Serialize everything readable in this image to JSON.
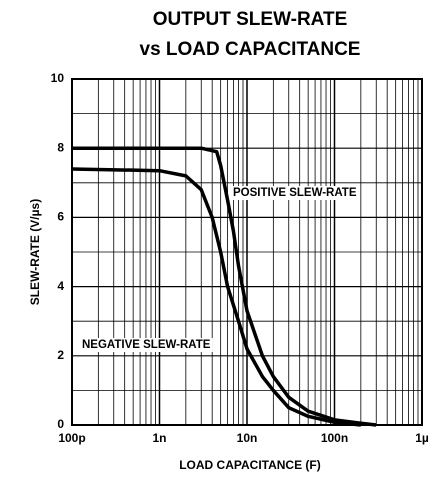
{
  "chart_data": {
    "type": "line",
    "title": [
      "OUTPUT SLEW-RATE",
      "vs LOAD CAPACITANCE"
    ],
    "x_label": "LOAD CAPACITANCE (F)",
    "y_label": "SLEW-RATE (V/µs)",
    "xscale": "log",
    "xlim": [
      1e-10,
      1e-06
    ],
    "xticks": [
      {
        "value": 1e-10,
        "label": "100p"
      },
      {
        "value": 1e-09,
        "label": "1n"
      },
      {
        "value": 1e-08,
        "label": "10n"
      },
      {
        "value": 1e-07,
        "label": "100n"
      },
      {
        "value": 1e-06,
        "label": "1µ"
      }
    ],
    "ylim": [
      0,
      10
    ],
    "yticks": [
      0,
      2,
      4,
      6,
      8,
      10
    ],
    "grid": true,
    "series": [
      {
        "name": "POSITIVE SLEW-RATE",
        "color": "#000000",
        "x": [
          1e-10,
          1e-09,
          3e-09,
          4.5e-09,
          5e-09,
          6e-09,
          7e-09,
          8e-09,
          1e-08,
          1.5e-08,
          2e-08,
          3e-08,
          5e-08,
          1e-07,
          2e-07,
          3e-07
        ],
        "values": [
          8,
          8,
          8,
          7.9,
          7.5,
          6.5,
          5.6,
          4.6,
          3.3,
          2,
          1.4,
          0.8,
          0.4,
          0.15,
          0.05,
          0
        ]
      },
      {
        "name": "NEGATIVE SLEW-RATE",
        "color": "#000000",
        "x": [
          1e-10,
          1e-09,
          2e-09,
          3e-09,
          4e-09,
          5e-09,
          6e-09,
          8e-09,
          1e-08,
          1.5e-08,
          2e-08,
          3e-08,
          5e-08,
          1e-07,
          2e-07
        ],
        "values": [
          7.4,
          7.35,
          7.2,
          6.8,
          6,
          5,
          4,
          3,
          2.2,
          1.4,
          1,
          0.5,
          0.25,
          0.08,
          0
        ]
      }
    ]
  }
}
